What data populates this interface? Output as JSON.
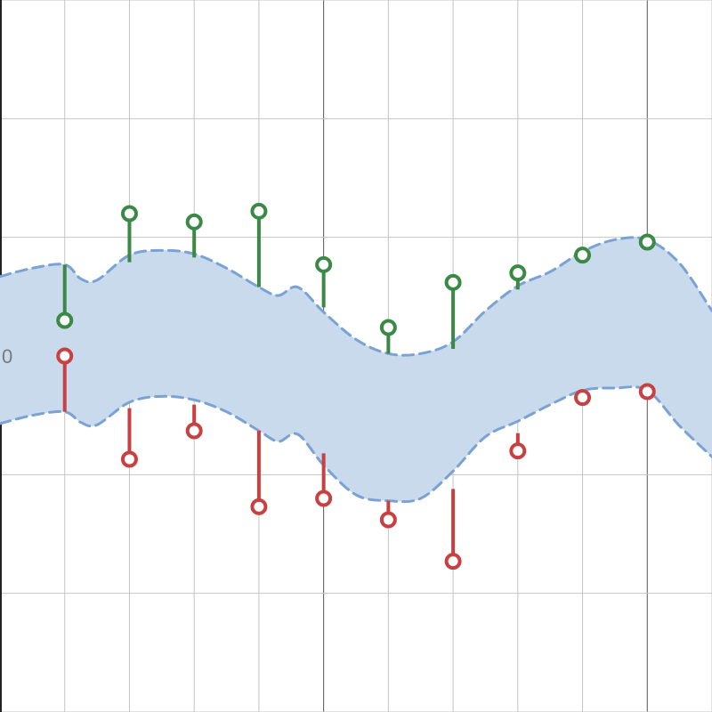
{
  "chart_data": {
    "type": "line",
    "title": "",
    "xlabel": "",
    "ylabel": "",
    "xlim": [
      -1,
      10
    ],
    "ylim": [
      -3,
      3
    ],
    "grid": true,
    "legend": "none",
    "y_tick_labels": [
      {
        "value": 0,
        "label": "0"
      }
    ],
    "band": {
      "x": [
        -1,
        -0.5,
        0,
        0.25,
        0.5,
        1,
        1.5,
        2,
        2.5,
        3,
        3.3,
        3.6,
        4,
        4.5,
        5,
        5.5,
        6,
        6.5,
        7,
        7.5,
        8,
        8.5,
        9,
        9.5,
        10
      ],
      "upper": [
        0.67,
        0.74,
        0.77,
        0.65,
        0.64,
        0.85,
        0.89,
        0.86,
        0.74,
        0.58,
        0.51,
        0.58,
        0.37,
        0.14,
        0.02,
        0.02,
        0.12,
        0.38,
        0.59,
        0.71,
        0.88,
        0.98,
        0.98,
        0.78,
        0.38
      ],
      "lower": [
        -0.57,
        -0.5,
        -0.47,
        -0.56,
        -0.58,
        -0.39,
        -0.34,
        -0.37,
        -0.47,
        -0.63,
        -0.72,
        -0.66,
        -0.92,
        -1.17,
        -1.22,
        -1.2,
        -0.97,
        -0.68,
        -0.55,
        -0.41,
        -0.29,
        -0.27,
        -0.29,
        -0.59,
        -0.85
      ],
      "fill": "#c8daec",
      "stroke": "#7ba2d4"
    },
    "upper_stems": {
      "x": [
        0,
        1,
        2,
        3,
        4,
        5,
        6,
        7,
        8,
        9
      ],
      "values": [
        0.3,
        1.2,
        1.13,
        1.22,
        0.77,
        0.24,
        0.62,
        0.7,
        0.85,
        0.96
      ],
      "base": [
        0.77,
        0.79,
        0.83,
        0.58,
        0.41,
        0.02,
        0.06,
        0.56,
        0.88,
        0.98
      ],
      "color": "#3a8a45"
    },
    "lower_stems": {
      "x": [
        0,
        1,
        2,
        3,
        4,
        5,
        6,
        7,
        8,
        9
      ],
      "values": [
        0.0,
        -0.87,
        -0.63,
        -1.27,
        -1.2,
        -1.38,
        -1.73,
        -0.8,
        -0.35,
        -0.3
      ],
      "base": [
        -0.47,
        -0.44,
        -0.41,
        -0.63,
        -0.82,
        -1.22,
        -1.12,
        -0.65,
        -0.29,
        -0.29
      ],
      "color": "#c94040"
    }
  }
}
